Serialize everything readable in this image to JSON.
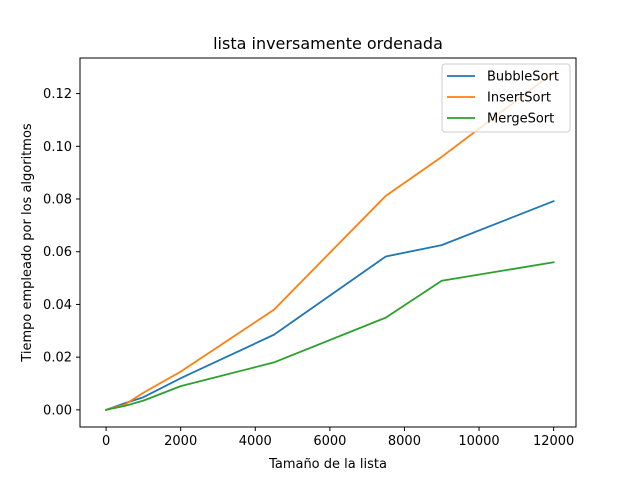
{
  "chart_data": {
    "type": "line",
    "title": "lista inversamente ordenada",
    "xlabel": "Tamaño de la lista",
    "ylabel": "Tiempo empleado por los algoritmos",
    "xlim": [
      -700,
      12600
    ],
    "ylim": [
      -0.0065,
      0.1335
    ],
    "xticks": [
      0,
      2000,
      4000,
      6000,
      8000,
      10000,
      12000
    ],
    "yticks": [
      0.0,
      0.02,
      0.04,
      0.06,
      0.08,
      0.1,
      0.12
    ],
    "ytick_labels": [
      "0.00",
      "0.02",
      "0.04",
      "0.06",
      "0.08",
      "0.10",
      "0.12"
    ],
    "grid": false,
    "legend_position": "upper right",
    "series": [
      {
        "name": "BubbleSort",
        "color": "#1f77b4",
        "x": [
          0,
          500,
          1000,
          2000,
          4500,
          7500,
          9000,
          12000
        ],
        "y": [
          0.0,
          0.0025,
          0.0048,
          0.012,
          0.0285,
          0.0582,
          0.0625,
          0.0792
        ]
      },
      {
        "name": "InsertSort",
        "color": "#ff7f0e",
        "x": [
          0,
          500,
          1000,
          2000,
          4500,
          7500,
          9000,
          12000
        ],
        "y": [
          0.0,
          0.002,
          0.0065,
          0.0145,
          0.038,
          0.0812,
          0.096,
          0.128
        ]
      },
      {
        "name": "MergeSort",
        "color": "#2ca02c",
        "x": [
          0,
          500,
          1000,
          2000,
          4500,
          7500,
          9000,
          12000
        ],
        "y": [
          0.0,
          0.0015,
          0.0035,
          0.009,
          0.018,
          0.035,
          0.049,
          0.056
        ]
      }
    ]
  }
}
